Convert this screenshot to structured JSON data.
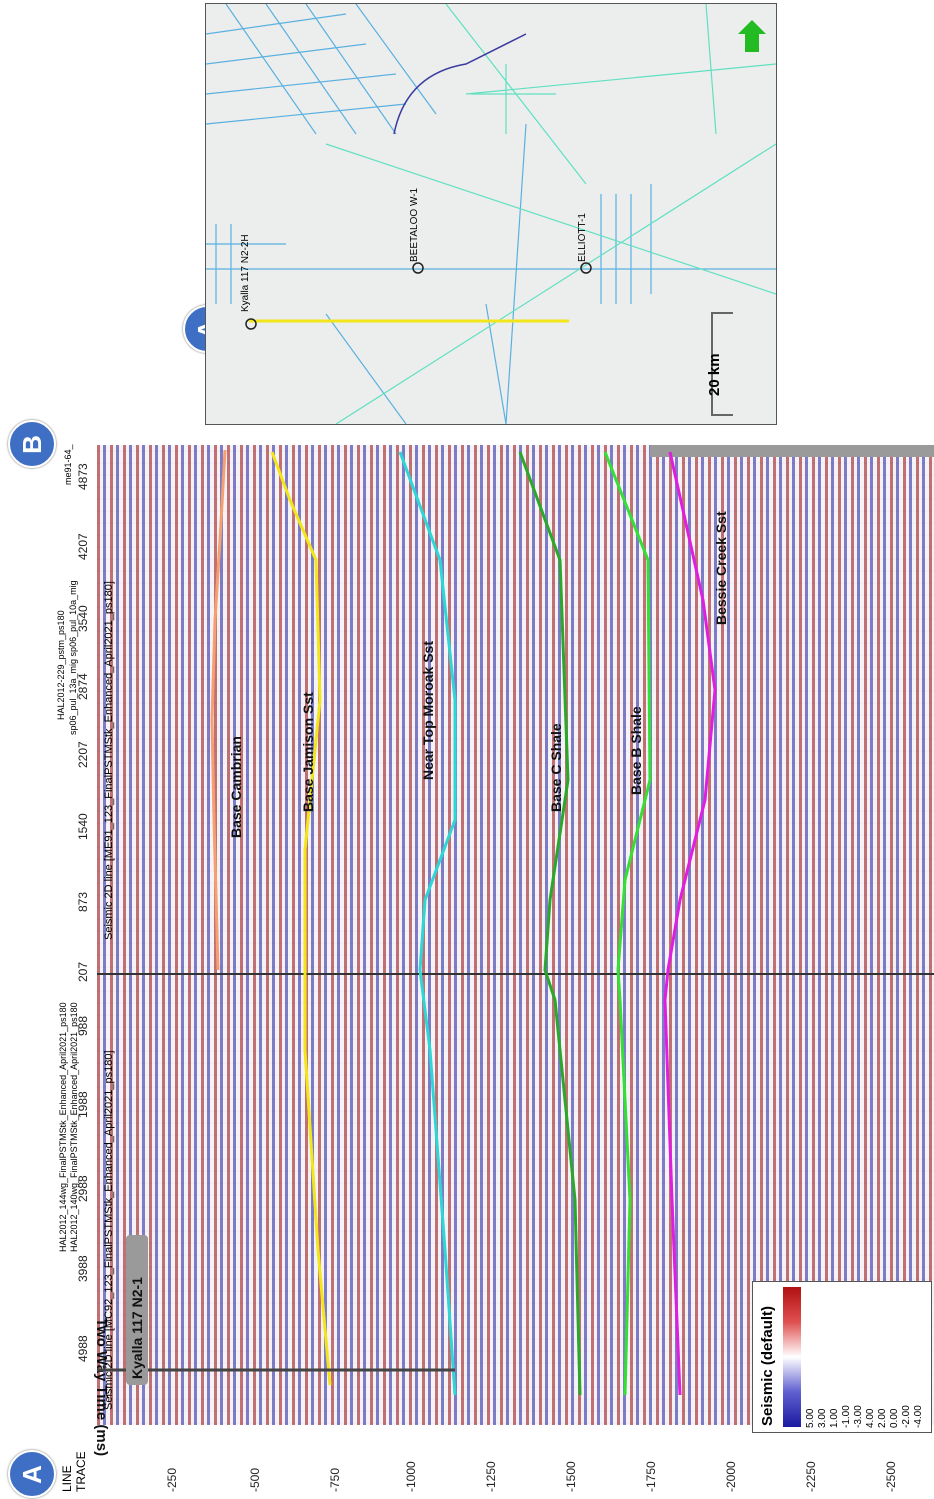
{
  "badges": {
    "a": "A",
    "b": "B"
  },
  "axis": {
    "line_label": "LINE",
    "trace_label": "TRACE",
    "title": "Two Way Time (ms)",
    "ticks": [
      "-250",
      "-500",
      "-750",
      "-1000",
      "-1250",
      "-1500",
      "-1750",
      "-2000",
      "-2250",
      "-2500"
    ]
  },
  "section_left": {
    "title": "Seismic 2D line [MC92_123_FinalPSTMStk_Enhanced_April2021_ps180]",
    "sub1": "HAL2012_144wg_FinalPSTMStk_Enhanced_April2021_ps180",
    "sub2": "HAL2012_140wg_FinalPSTMStk_Enhanced_April2021_ps180",
    "traces": [
      "4988",
      "3988",
      "2988",
      "1988",
      "988",
      "207"
    ],
    "well": "Kyalla 117 N2-1"
  },
  "section_right": {
    "title": "Seismic 2D line [ME91_123_FinalPSTMStk_Enhanced_April2021_ps180]",
    "sub1": "HAL2012-229_pstm_ps180",
    "sub2": "sp06_pul_13a_mig    sp06_pul_10a_mig",
    "sub3": "me91-64_",
    "traces": [
      "873",
      "1540",
      "2207",
      "2874",
      "3540",
      "4207",
      "4873"
    ]
  },
  "horizons": [
    {
      "name": "Base Cambrian",
      "color": "#f4a070"
    },
    {
      "name": "Base Jamison Sst",
      "color": "#f2e61a"
    },
    {
      "name": "Near Top Moroak Sst",
      "color": "#2fd6d6"
    },
    {
      "name": "Base C Shale",
      "color": "#2aa82a"
    },
    {
      "name": "Base B Shale",
      "color": "#33e033"
    },
    {
      "name": "Bessie Creek Sst",
      "color": "#e01ee0"
    }
  ],
  "map": {
    "wells": [
      "Kyalla 117 N2-2H",
      "BEETALOO W-1",
      "ELLIOTT-1"
    ],
    "scale": "20 km",
    "north_arrow": "arrow-icon"
  },
  "legend": {
    "title": "Seismic (default)",
    "values": [
      "5.00",
      "4.00",
      "3.00",
      "2.00",
      "1.00",
      "0.00",
      "-1.00",
      "-2.00",
      "-3.00",
      "-4.00"
    ],
    "colors": [
      "#1a1aa0",
      "#b01010"
    ]
  }
}
